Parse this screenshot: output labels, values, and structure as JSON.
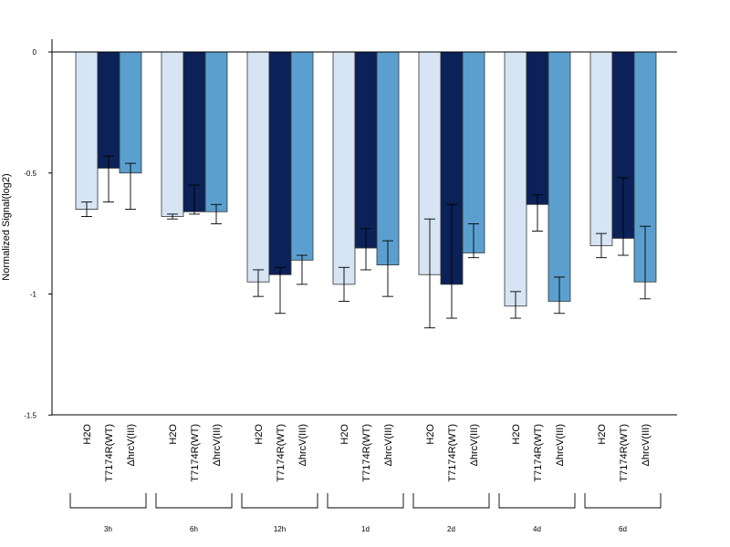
{
  "chart_data": {
    "type": "bar",
    "ylabel": "Normalized Signal(log2)",
    "ylim": [
      -1.5,
      0.05
    ],
    "yticks": [
      0,
      -0.5,
      -1,
      -1.5
    ],
    "ytick_labels": [
      "0",
      "-0.5",
      "-1",
      "-1.5"
    ],
    "grid": false,
    "conditions": [
      "H2O",
      "T7174R(WT)",
      "ΔhrcV(III)"
    ],
    "groups": [
      "3h",
      "6h",
      "12h",
      "1d",
      "2d",
      "4d",
      "6d"
    ],
    "colors": [
      "#d6e4f4",
      "#0b2157",
      "#5b9fce"
    ],
    "series": [
      {
        "values": [
          -0.65,
          -0.68,
          -0.95,
          -0.96,
          -0.92,
          -1.05,
          -0.8
        ],
        "err_low": [
          -0.68,
          -0.69,
          -1.01,
          -1.03,
          -1.14,
          -1.1,
          -0.85
        ],
        "err_high": [
          -0.62,
          -0.67,
          -0.9,
          -0.89,
          -0.69,
          -0.99,
          -0.75
        ]
      },
      {
        "values": [
          -0.48,
          -0.66,
          -0.92,
          -0.81,
          -0.96,
          -0.63,
          -0.77
        ],
        "err_low": [
          -0.62,
          -0.67,
          -1.08,
          -0.9,
          -1.1,
          -0.74,
          -0.84
        ],
        "err_high": [
          -0.43,
          -0.55,
          -0.89,
          -0.73,
          -0.63,
          -0.59,
          -0.52
        ]
      },
      {
        "values": [
          -0.5,
          -0.66,
          -0.86,
          -0.88,
          -0.83,
          -1.03,
          -0.95
        ],
        "err_low": [
          -0.65,
          -0.71,
          -0.96,
          -1.01,
          -0.85,
          -1.08,
          -1.02
        ],
        "err_high": [
          -0.46,
          -0.63,
          -0.84,
          -0.78,
          -0.71,
          -0.93,
          -0.72
        ]
      }
    ]
  }
}
